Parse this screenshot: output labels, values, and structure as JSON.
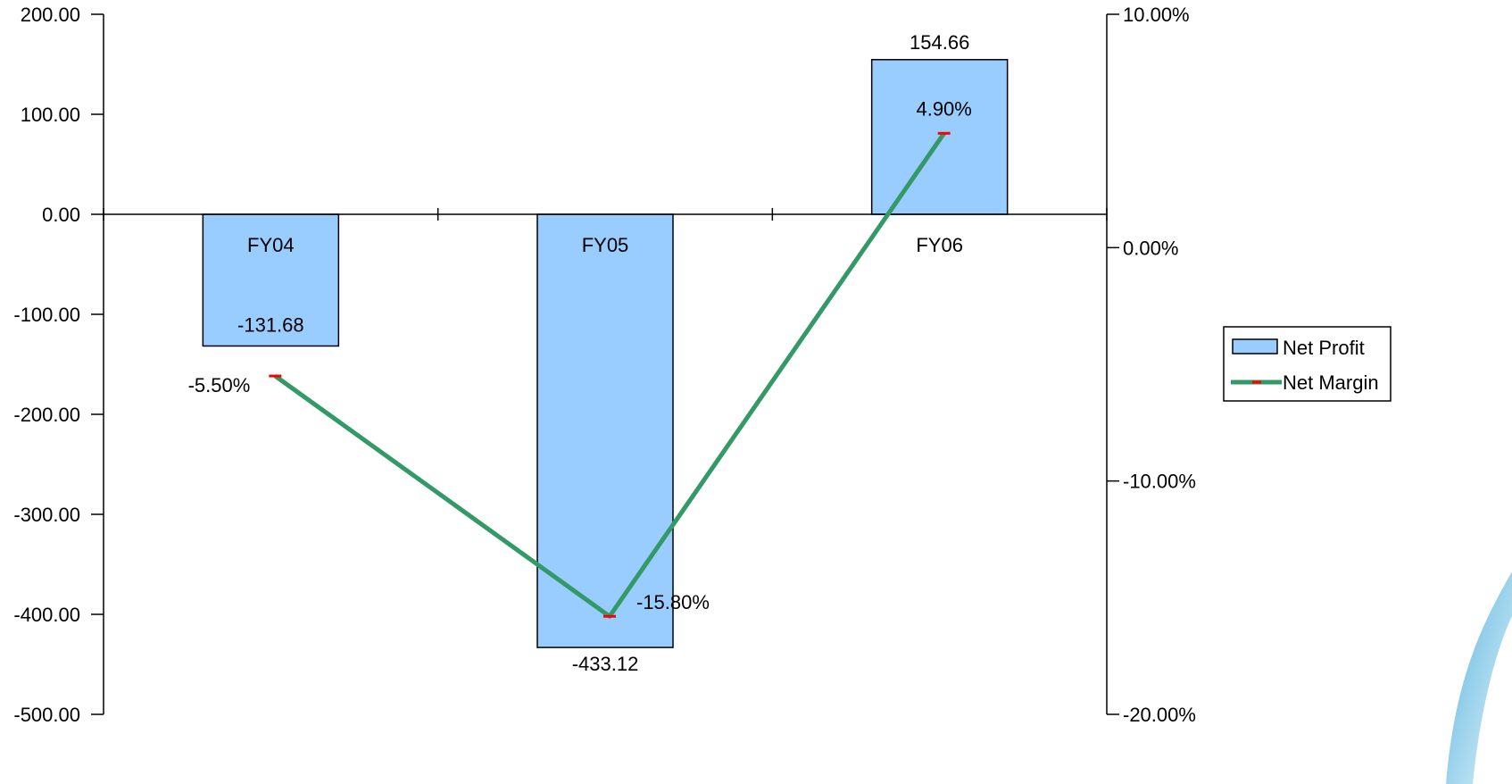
{
  "chart_data": {
    "type": "bar",
    "categories": [
      "FY04",
      "FY05",
      "FY06"
    ],
    "series": [
      {
        "name": "Net Profit",
        "type": "bar",
        "axis": "left",
        "values": [
          -131.68,
          -433.12,
          154.66
        ],
        "labels": [
          "-131.68",
          "-433.12",
          "154.66"
        ]
      },
      {
        "name": "Net Margin",
        "type": "line",
        "axis": "right",
        "values": [
          -5.5,
          -15.8,
          4.9
        ],
        "labels": [
          "-5.50%",
          "-15.80%",
          "4.90%"
        ]
      }
    ],
    "left_axis": {
      "range": [
        -500,
        200
      ],
      "ticks": [
        200,
        100,
        0,
        -100,
        -200,
        -300,
        -400,
        -500
      ],
      "tick_labels": [
        "200.00",
        "100.00",
        "0.00",
        "-100.00",
        "-200.00",
        "-300.00",
        "-400.00",
        "-500.00"
      ]
    },
    "right_axis": {
      "range": [
        -20,
        10
      ],
      "ticks": [
        10,
        0,
        -10,
        -20
      ],
      "tick_labels": [
        "10.00%",
        "0.00%",
        "-10.00%",
        "-20.00%"
      ]
    },
    "grid": false,
    "legend_position": "right",
    "colors": {
      "bar_fill": "#99ccff",
      "bar_stroke": "#000000",
      "line": "#339966",
      "marker": "#ff0000",
      "swoosh": "#5bb8df"
    }
  }
}
